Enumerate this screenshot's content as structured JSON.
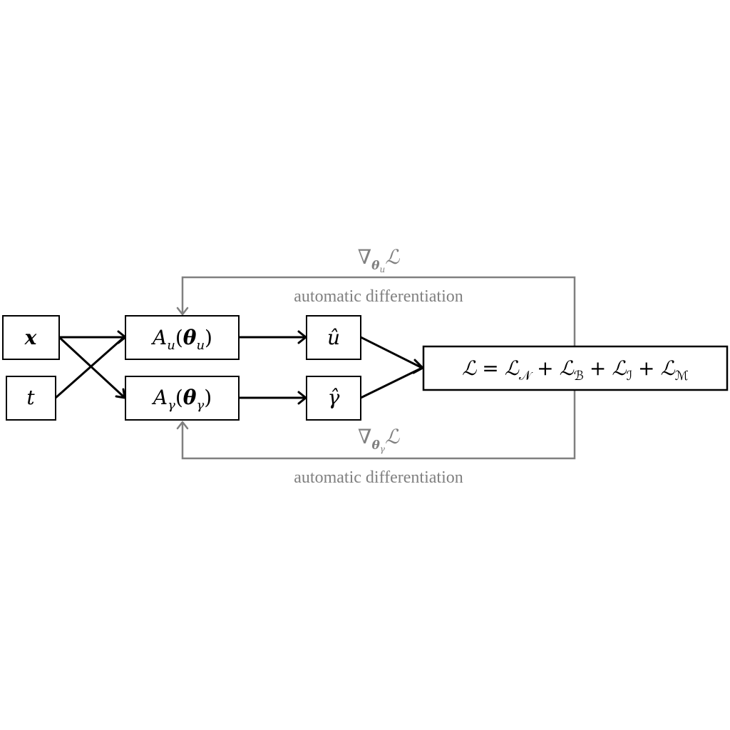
{
  "nodes": {
    "x": {
      "label": "x"
    },
    "t": {
      "label": "t"
    },
    "au": {
      "base": "A",
      "sub": "u",
      "open": "(",
      "theta": "θ",
      "theta_sub": "u",
      "close": ")"
    },
    "ag": {
      "base": "A",
      "sub": "γ",
      "open": "(",
      "theta": "θ",
      "theta_sub": "γ",
      "close": ")"
    },
    "uhat": {
      "label": "û"
    },
    "ghat": {
      "label": "γ̂"
    },
    "loss": {
      "lhs": "ℒ",
      "eq": "=",
      "plus": "+",
      "base": "ℒ",
      "subs": [
        "𝒩",
        "ℬ",
        "ℐ",
        "ℳ"
      ]
    }
  },
  "feedback": {
    "top": {
      "nabla": "∇",
      "theta": "θ",
      "theta_sub": "u",
      "target": "ℒ",
      "note": "automatic differentiation"
    },
    "bottom": {
      "nabla": "∇",
      "theta": "θ",
      "theta_sub": "γ",
      "target": "ℒ",
      "note": "automatic differentiation"
    }
  },
  "colors": {
    "edge": "#000000",
    "feedback": "#808080",
    "node_fill": "#ffffff"
  }
}
